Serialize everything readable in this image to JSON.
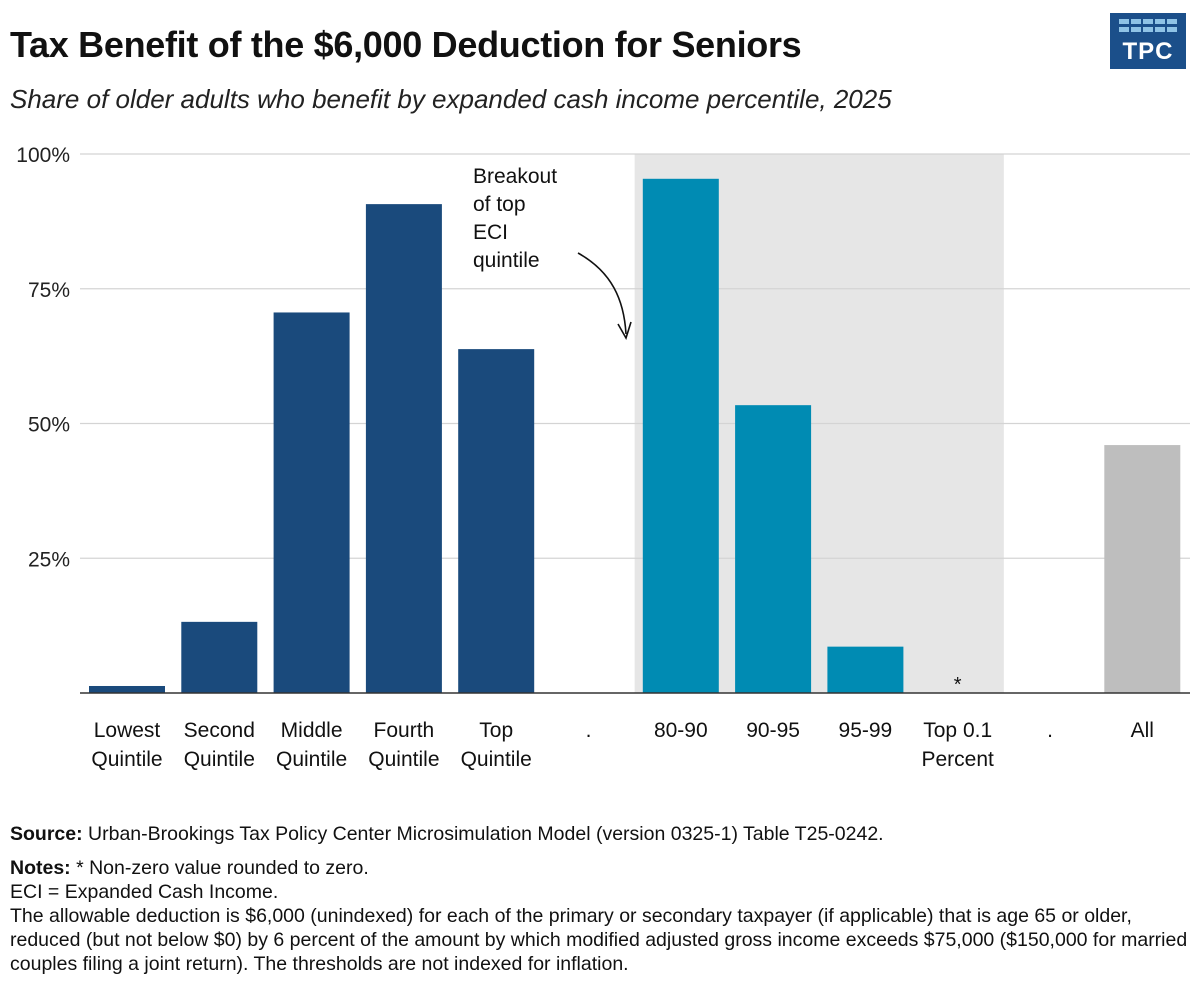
{
  "header": {
    "title": "Tax Benefit of the $6,000 Deduction for Seniors",
    "subtitle": "Share of older adults who benefit by expanded cash income percentile, 2025",
    "logo_text": "TPC"
  },
  "chart_data": {
    "type": "bar",
    "categories": [
      [
        "Lowest",
        "Quintile"
      ],
      [
        "Second",
        "Quintile"
      ],
      [
        "Middle",
        "Quintile"
      ],
      [
        "Fourth",
        "Quintile"
      ],
      [
        "Top",
        "Quintile"
      ],
      [
        "."
      ],
      [
        "80-90"
      ],
      [
        "90-95"
      ],
      [
        "95-99"
      ],
      [
        "Top 0.1",
        "Percent"
      ],
      [
        "."
      ],
      [
        "All"
      ]
    ],
    "values": [
      1.3,
      13.2,
      70.6,
      90.7,
      63.8,
      null,
      95.4,
      53.4,
      8.6,
      0,
      null,
      46.0
    ],
    "bar_groups": [
      "quintile",
      "quintile",
      "quintile",
      "quintile",
      "quintile",
      "none",
      "breakout",
      "breakout",
      "breakout",
      "breakout",
      "none",
      "all"
    ],
    "value_labels": [
      "",
      "",
      "",
      "",
      "",
      "",
      "",
      "",
      "",
      "*",
      "",
      ""
    ],
    "colors": {
      "quintile": "#1a4a7c",
      "breakout": "#008bb3",
      "all": "#bebebe",
      "shade": "#e6e6e6",
      "grid": "#d4d4d4"
    },
    "ylim": [
      0,
      100
    ],
    "yticks": [
      25,
      50,
      75,
      100
    ],
    "ytick_labels": [
      "25%",
      "50%",
      "75%",
      "100%"
    ],
    "grid": true,
    "shaded_range": [
      "80-90",
      "Top 0.1"
    ],
    "annotation": {
      "lines": [
        "Breakout",
        "of top",
        "ECI",
        "quintile"
      ],
      "points_to": "80-90"
    }
  },
  "footer": {
    "source_label": "Source:",
    "source_text": " Urban-Brookings Tax Policy Center Microsimulation Model (version 0325-1) Table T25-0242.",
    "notes_label": "Notes:",
    "notes_line1": " * Non-zero value rounded to zero.",
    "notes_line2": "ECI = Expanded Cash Income.",
    "notes_line3": "The allowable deduction is $6,000 (unindexed) for each of the primary or secondary taxpayer (if applicable) that is age 65 or older, reduced (but not below $0) by 6 percent of the amount by which modified adjusted gross income exceeds $75,000 ($150,000 for married couples filing a joint return). The thresholds are not indexed for inflation."
  }
}
